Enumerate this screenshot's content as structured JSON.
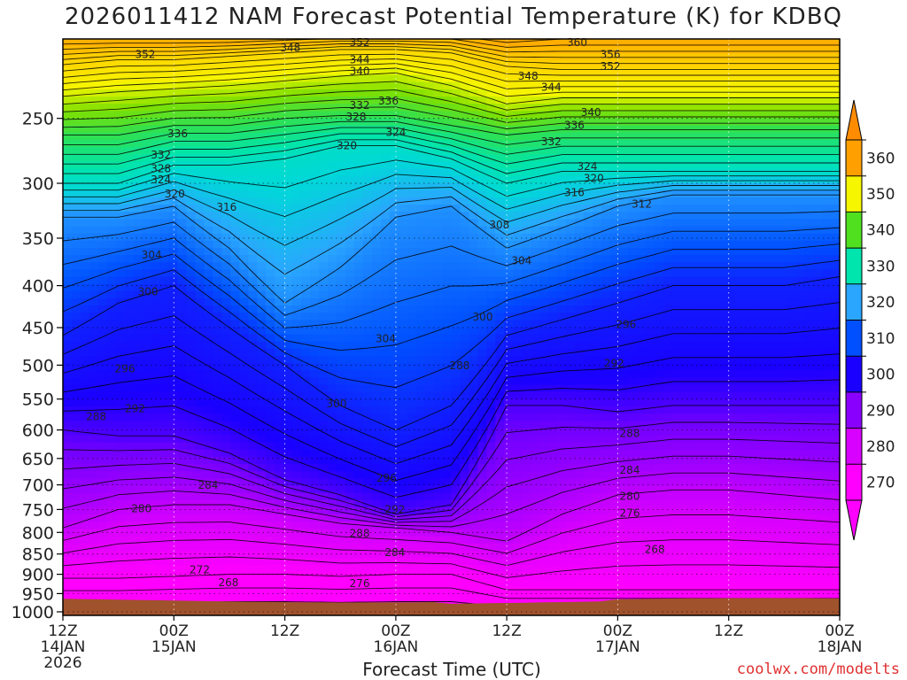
{
  "chart_data": {
    "type": "heatmap",
    "title": "2026011412 NAM Forecast Potential Temperature (K) for KDBQ",
    "xlabel": "Forecast Time (UTC)",
    "ylabel": "",
    "x_ticks": [
      {
        "hour": 0,
        "line1": "12Z",
        "line2": "14JAN",
        "line3": "2026"
      },
      {
        "hour": 12,
        "line1": "00Z",
        "line2": "15JAN",
        "line3": ""
      },
      {
        "hour": 24,
        "line1": "12Z",
        "line2": "",
        "line3": ""
      },
      {
        "hour": 36,
        "line1": "00Z",
        "line2": "16JAN",
        "line3": ""
      },
      {
        "hour": 48,
        "line1": "12Z",
        "line2": "",
        "line3": ""
      },
      {
        "hour": 60,
        "line1": "00Z",
        "line2": "17JAN",
        "line3": ""
      },
      {
        "hour": 72,
        "line1": "12Z",
        "line2": "",
        "line3": ""
      },
      {
        "hour": 84,
        "line1": "00Z",
        "line2": "18JAN",
        "line3": ""
      }
    ],
    "xlim": [
      0,
      84
    ],
    "y_ticks": [
      250,
      300,
      350,
      400,
      450,
      500,
      550,
      600,
      650,
      700,
      750,
      800,
      850,
      900,
      950,
      1000
    ],
    "ylim": [
      1010,
      200
    ],
    "y_scale": "log",
    "grid": "dotted",
    "colorbar": {
      "labels": [
        270,
        280,
        290,
        300,
        310,
        320,
        330,
        340,
        350,
        360
      ],
      "colors": [
        "#ff00ff",
        "#d800ff",
        "#8a00ff",
        "#1a00ff",
        "#0050ff",
        "#2aa6ff",
        "#00e4ad",
        "#50e020",
        "#f6f600",
        "#ffa000"
      ],
      "placement": "right",
      "extend": "both"
    },
    "contour_interval": 2,
    "contour_labels": [
      {
        "v": "352",
        "x": 8.9,
        "p": 209
      },
      {
        "v": "348",
        "x": 24.6,
        "p": 205
      },
      {
        "v": "352",
        "x": 32.1,
        "p": 202
      },
      {
        "v": "344",
        "x": 32.1,
        "p": 212
      },
      {
        "v": "340",
        "x": 32.1,
        "p": 219
      },
      {
        "v": "336",
        "x": 35.2,
        "p": 238
      },
      {
        "v": "332",
        "x": 32.1,
        "p": 241
      },
      {
        "v": "328",
        "x": 31.7,
        "p": 249
      },
      {
        "v": "324",
        "x": 36.0,
        "p": 260
      },
      {
        "v": "320",
        "x": 30.7,
        "p": 270
      },
      {
        "v": "360",
        "x": 55.6,
        "p": 202
      },
      {
        "v": "356",
        "x": 59.2,
        "p": 209
      },
      {
        "v": "352",
        "x": 59.2,
        "p": 216
      },
      {
        "v": "348",
        "x": 50.3,
        "p": 222
      },
      {
        "v": "344",
        "x": 52.8,
        "p": 229
      },
      {
        "v": "340",
        "x": 57.1,
        "p": 246
      },
      {
        "v": "336",
        "x": 55.3,
        "p": 255
      },
      {
        "v": "332",
        "x": 52.8,
        "p": 267
      },
      {
        "v": "324",
        "x": 56.7,
        "p": 286
      },
      {
        "v": "320",
        "x": 57.4,
        "p": 296
      },
      {
        "v": "316",
        "x": 55.3,
        "p": 308
      },
      {
        "v": "312",
        "x": 62.6,
        "p": 318
      },
      {
        "v": "336",
        "x": 12.4,
        "p": 261
      },
      {
        "v": "332",
        "x": 10.6,
        "p": 277
      },
      {
        "v": "328",
        "x": 10.6,
        "p": 288
      },
      {
        "v": "324",
        "x": 10.6,
        "p": 297
      },
      {
        "v": "320",
        "x": 12.1,
        "p": 309
      },
      {
        "v": "316",
        "x": 17.7,
        "p": 321
      },
      {
        "v": "308",
        "x": 47.2,
        "p": 337
      },
      {
        "v": "304",
        "x": 9.6,
        "p": 367
      },
      {
        "v": "304",
        "x": 49.6,
        "p": 373
      },
      {
        "v": "300",
        "x": 9.2,
        "p": 407
      },
      {
        "v": "300",
        "x": 45.4,
        "p": 437
      },
      {
        "v": "296",
        "x": 60.9,
        "p": 446
      },
      {
        "v": "304",
        "x": 34.9,
        "p": 464
      },
      {
        "v": "292",
        "x": 59.6,
        "p": 498
      },
      {
        "v": "288",
        "x": 42.9,
        "p": 501
      },
      {
        "v": "296",
        "x": 6.7,
        "p": 505
      },
      {
        "v": "300",
        "x": 29.6,
        "p": 557
      },
      {
        "v": "292",
        "x": 7.8,
        "p": 565
      },
      {
        "v": "288",
        "x": 3.6,
        "p": 578
      },
      {
        "v": "288",
        "x": 61.3,
        "p": 606
      },
      {
        "v": "284",
        "x": 61.3,
        "p": 672
      },
      {
        "v": "284",
        "x": 15.7,
        "p": 701
      },
      {
        "v": "296",
        "x": 35.0,
        "p": 687
      },
      {
        "v": "280",
        "x": 61.3,
        "p": 723
      },
      {
        "v": "280",
        "x": 8.5,
        "p": 748
      },
      {
        "v": "292",
        "x": 35.9,
        "p": 750
      },
      {
        "v": "276",
        "x": 61.3,
        "p": 758
      },
      {
        "v": "288",
        "x": 32.1,
        "p": 802
      },
      {
        "v": "284",
        "x": 35.9,
        "p": 847
      },
      {
        "v": "268",
        "x": 64.0,
        "p": 839
      },
      {
        "v": "272",
        "x": 14.8,
        "p": 889
      },
      {
        "v": "276",
        "x": 32.1,
        "p": 924
      },
      {
        "v": "268",
        "x": 17.9,
        "p": 921
      }
    ]
  }
}
